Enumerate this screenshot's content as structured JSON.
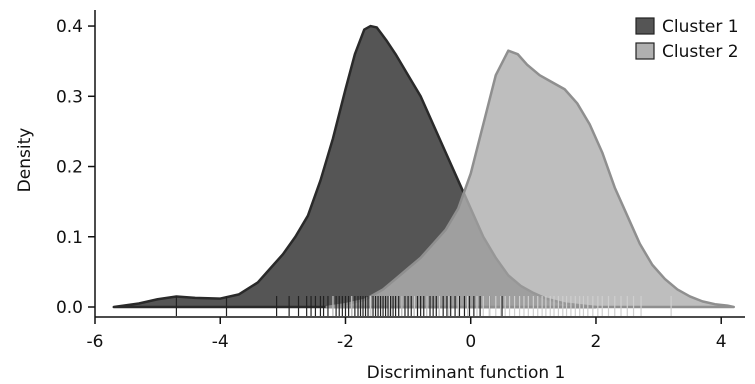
{
  "chart_data": {
    "type": "area",
    "xlabel": "Discriminant function 1",
    "ylabel": "Density",
    "xlim": [
      -6,
      4.3
    ],
    "ylim": [
      0,
      0.42
    ],
    "x_ticks": [
      -6,
      -4,
      -2,
      0,
      2,
      4
    ],
    "x_tick_labels": [
      "-6",
      "-4",
      "-2",
      "0",
      "2",
      "4"
    ],
    "y_ticks": [
      0.0,
      0.1,
      0.2,
      0.3,
      0.4
    ],
    "y_tick_labels": [
      "0.0",
      "0.1",
      "0.2",
      "0.3",
      "0.4"
    ],
    "grid": false,
    "legend_position": "top-right",
    "series": [
      {
        "name": "Cluster 1",
        "fill": "#555555",
        "stroke": "#2a2a2a",
        "x": [
          -5.7,
          -5.3,
          -5.0,
          -4.7,
          -4.4,
          -4.0,
          -3.7,
          -3.4,
          -3.2,
          -3.0,
          -2.8,
          -2.6,
          -2.4,
          -2.2,
          -2.0,
          -1.85,
          -1.7,
          -1.6,
          -1.5,
          -1.35,
          -1.2,
          -1.0,
          -0.8,
          -0.6,
          -0.4,
          -0.2,
          0.0,
          0.2,
          0.4,
          0.6,
          0.8,
          1.0,
          1.2,
          1.5,
          1.8,
          2.0
        ],
        "y": [
          0.0,
          0.005,
          0.011,
          0.015,
          0.013,
          0.012,
          0.018,
          0.035,
          0.055,
          0.075,
          0.1,
          0.13,
          0.18,
          0.24,
          0.31,
          0.36,
          0.395,
          0.4,
          0.398,
          0.38,
          0.36,
          0.33,
          0.3,
          0.26,
          0.22,
          0.18,
          0.14,
          0.1,
          0.07,
          0.045,
          0.03,
          0.02,
          0.012,
          0.005,
          0.002,
          0.0
        ]
      },
      {
        "name": "Cluster 2",
        "fill": "#b0b0b0",
        "stroke": "#8f8f8f",
        "x": [
          -2.3,
          -2.0,
          -1.7,
          -1.4,
          -1.2,
          -1.0,
          -0.8,
          -0.6,
          -0.4,
          -0.2,
          0.0,
          0.2,
          0.4,
          0.6,
          0.75,
          0.9,
          1.1,
          1.3,
          1.5,
          1.7,
          1.9,
          2.1,
          2.3,
          2.5,
          2.7,
          2.9,
          3.1,
          3.3,
          3.5,
          3.7,
          3.9,
          4.1,
          4.2
        ],
        "y": [
          0.0,
          0.004,
          0.01,
          0.025,
          0.04,
          0.055,
          0.07,
          0.09,
          0.11,
          0.14,
          0.19,
          0.26,
          0.33,
          0.365,
          0.36,
          0.345,
          0.33,
          0.32,
          0.31,
          0.29,
          0.26,
          0.22,
          0.17,
          0.13,
          0.09,
          0.06,
          0.04,
          0.025,
          0.015,
          0.008,
          0.004,
          0.002,
          0.0
        ]
      }
    ],
    "rug": [
      {
        "series": "Cluster 1",
        "values": [
          -4.7,
          -3.9,
          -3.1,
          -2.9,
          -2.75,
          -2.62,
          -2.55,
          -2.48,
          -2.4,
          -2.35,
          -2.28,
          -2.2,
          -2.15,
          -2.1,
          -2.05,
          -2.0,
          -1.95,
          -1.9,
          -1.85,
          -1.8,
          -1.76,
          -1.72,
          -1.68,
          -1.64,
          -1.6,
          -1.56,
          -1.52,
          -1.48,
          -1.44,
          -1.4,
          -1.36,
          -1.32,
          -1.28,
          -1.24,
          -1.2,
          -1.15,
          -1.1,
          -1.05,
          -1.0,
          -0.95,
          -0.9,
          -0.85,
          -0.8,
          -0.75,
          -0.7,
          -0.65,
          -0.6,
          -0.55,
          -0.5,
          -0.44,
          -0.38,
          -0.32,
          -0.25,
          -0.18,
          -0.1,
          -0.02,
          0.05,
          0.15,
          0.3,
          0.5
        ]
      },
      {
        "series": "Cluster 2",
        "values": [
          -2.2,
          -1.9,
          -1.6,
          -1.3,
          -1.1,
          -0.9,
          -0.7,
          -0.5,
          -0.35,
          -0.2,
          -0.05,
          0.1,
          0.2,
          0.3,
          0.4,
          0.48,
          0.55,
          0.62,
          0.7,
          0.78,
          0.85,
          0.92,
          1.0,
          1.07,
          1.14,
          1.2,
          1.27,
          1.33,
          1.4,
          1.47,
          1.53,
          1.6,
          1.67,
          1.74,
          1.8,
          1.87,
          1.95,
          2.03,
          2.1,
          2.2,
          2.3,
          2.4,
          2.5,
          2.6,
          2.72,
          3.2
        ]
      }
    ]
  }
}
